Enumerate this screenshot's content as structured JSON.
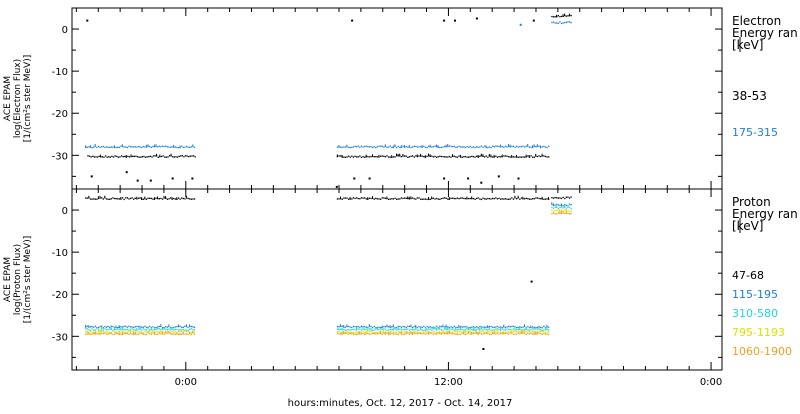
{
  "x_axis": {
    "label": "hours:minutes, Oct. 12, 2017 - Oct. 14, 2017",
    "range_hours": [
      -5.2,
      24.5
    ],
    "ticks": [
      {
        "value": 0,
        "label": "0:00"
      },
      {
        "value": 12,
        "label": "12:00"
      },
      {
        "value": 24,
        "label": "0:00"
      }
    ],
    "minor_step_hours": 1
  },
  "chart_data": [
    {
      "type": "scatter",
      "panel": "electron",
      "ylabel": [
        "ACE EPAM",
        "log(Electron Flux)",
        "[1/(cm²s ster MeV)]"
      ],
      "ylim": [
        -38,
        5
      ],
      "yticks": [
        0,
        -10,
        -20,
        -30
      ],
      "legend_title": [
        "Electron",
        "Energy ran",
        "[keV]"
      ],
      "series": [
        {
          "name": "38-53",
          "color": "#000000",
          "segments": [
            {
              "x0": -4.5,
              "x1": 0.4,
              "y": -30.3
            },
            {
              "x0": 6.9,
              "x1": 16.6,
              "y": -30.3
            },
            {
              "x0": 16.7,
              "x1": 17.6,
              "y": 3.0
            }
          ],
          "points": [
            {
              "x": -4.5,
              "y": 2.0
            },
            {
              "x": 7.6,
              "y": 2.0
            },
            {
              "x": 11.8,
              "y": 2.0
            },
            {
              "x": 12.3,
              "y": 2.0
            },
            {
              "x": 13.3,
              "y": 2.5
            },
            {
              "x": 15.9,
              "y": 2.0
            },
            {
              "x": -4.3,
              "y": -35.0
            },
            {
              "x": -2.2,
              "y": -36.0
            },
            {
              "x": -1.6,
              "y": -36.0
            },
            {
              "x": -0.6,
              "y": -35.5
            },
            {
              "x": 0.3,
              "y": -35.5
            },
            {
              "x": -2.7,
              "y": -34.0
            },
            {
              "x": 6.9,
              "y": -37.5
            },
            {
              "x": 7.7,
              "y": -35.5
            },
            {
              "x": 8.4,
              "y": -35.5
            },
            {
              "x": 11.8,
              "y": -35.5
            },
            {
              "x": 12.9,
              "y": -35.5
            },
            {
              "x": 13.5,
              "y": -36.5
            },
            {
              "x": 14.3,
              "y": -35.0
            },
            {
              "x": 15.2,
              "y": -35.5
            }
          ]
        },
        {
          "name": "175-315",
          "color": "#1f7fe0",
          "segments": [
            {
              "x0": -4.6,
              "x1": 0.4,
              "y": -28.0
            },
            {
              "x0": 6.9,
              "x1": 16.6,
              "y": -28.0
            },
            {
              "x0": 16.7,
              "x1": 17.6,
              "y": 1.5
            }
          ],
          "points": [
            {
              "x": 15.3,
              "y": 1.0
            }
          ]
        }
      ]
    },
    {
      "type": "scatter",
      "panel": "proton",
      "ylabel": [
        "ACE EPAM",
        "log(Proton Flux)",
        "[1/(cm²s ster MeV)]"
      ],
      "ylim": [
        -38,
        5
      ],
      "yticks": [
        0,
        -10,
        -20,
        -30
      ],
      "legend_title": [
        "Proton",
        "Energy ran",
        "[keV]"
      ],
      "series": [
        {
          "name": "47-68",
          "color": "#000000",
          "segments": [
            {
              "x0": -4.6,
              "x1": 0.4,
              "y": 2.7
            },
            {
              "x0": 6.9,
              "x1": 16.6,
              "y": 2.7
            },
            {
              "x0": 16.7,
              "x1": 17.6,
              "y": 2.9
            }
          ],
          "points": [
            {
              "x": 15.8,
              "y": -17.0
            },
            {
              "x": 13.6,
              "y": -33.0
            }
          ]
        },
        {
          "name": "115-195",
          "color": "#1f7fe0",
          "segments": [
            {
              "x0": -4.6,
              "x1": 0.4,
              "y": -27.8
            },
            {
              "x0": 6.9,
              "x1": 16.6,
              "y": -27.8
            },
            {
              "x0": 16.7,
              "x1": 17.6,
              "y": 1.2
            }
          ],
          "points": []
        },
        {
          "name": "310-580",
          "color": "#1ed8e0",
          "segments": [
            {
              "x0": -4.6,
              "x1": 0.4,
              "y": -28.4
            },
            {
              "x0": 6.9,
              "x1": 16.6,
              "y": -28.4
            },
            {
              "x0": 16.7,
              "x1": 17.6,
              "y": 0.5
            }
          ],
          "points": []
        },
        {
          "name": "795-1193",
          "color": "#e0e000",
          "segments": [
            {
              "x0": -4.6,
              "x1": 0.4,
              "y": -29.0
            },
            {
              "x0": 6.9,
              "x1": 16.6,
              "y": -29.0
            },
            {
              "x0": 16.7,
              "x1": 17.6,
              "y": -0.2
            }
          ],
          "points": []
        },
        {
          "name": "1060-1900",
          "color": "#f0a020",
          "segments": [
            {
              "x0": -4.6,
              "x1": 0.4,
              "y": -29.4
            },
            {
              "x0": 6.9,
              "x1": 16.6,
              "y": -29.4
            },
            {
              "x0": 16.7,
              "x1": 17.6,
              "y": -0.8
            }
          ],
          "points": []
        }
      ]
    }
  ]
}
